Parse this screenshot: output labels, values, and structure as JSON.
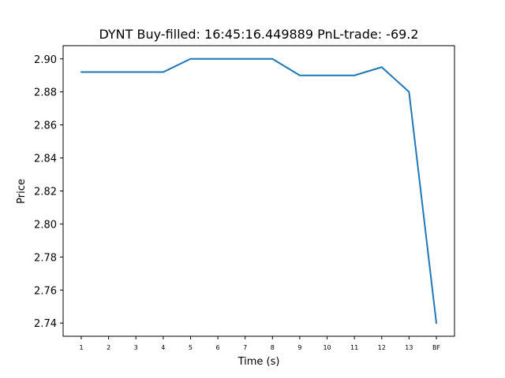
{
  "chart_data": {
    "type": "line",
    "title": "DYNT  Buy-filled:  16:45:16.449889  PnL-trade:  -69.2",
    "xlabel": "Time (s)",
    "ylabel": "Price",
    "categories": [
      "1",
      "2",
      "3",
      "4",
      "5",
      "6",
      "7",
      "8",
      "9",
      "10",
      "11",
      "12",
      "13",
      "BF"
    ],
    "series": [
      {
        "values": [
          2.892,
          2.892,
          2.892,
          2.892,
          2.9,
          2.9,
          2.9,
          2.9,
          2.89,
          2.89,
          2.89,
          2.895,
          2.88,
          2.74
        ]
      }
    ],
    "yticks": [
      "2.74",
      "2.76",
      "2.78",
      "2.80",
      "2.82",
      "2.84",
      "2.86",
      "2.88",
      "2.90"
    ],
    "ylim": [
      2.732,
      2.908
    ],
    "grid": false,
    "colors": {
      "line": "#1f77b4",
      "axes": "#000000",
      "background": "#ffffff"
    }
  }
}
